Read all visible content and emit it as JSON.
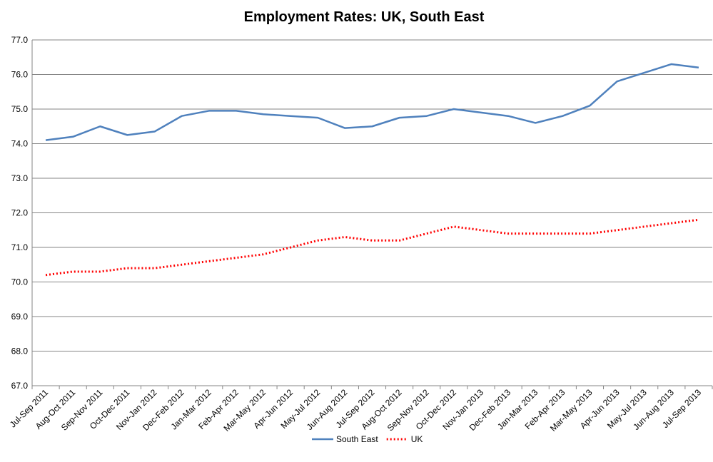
{
  "chart_data": {
    "type": "line",
    "title": "Employment Rates: UK, South East",
    "categories": [
      "Jul-Sep 2011",
      "Aug-Oct 2011",
      "Sep-Nov 2011",
      "Oct-Dec 2011",
      "Nov-Jan 2012",
      "Dec-Feb 2012",
      "Jan-Mar 2012",
      "Feb-Apr 2012",
      "Mar-May 2012",
      "Apr-Jun 2012",
      "May-Jul 2012",
      "Jun-Aug 2012",
      "Jul-Sep 2012",
      "Aug-Oct 2012",
      "Sep-Nov 2012",
      "Oct-Dec 2012",
      "Nov-Jan 2013",
      "Dec-Feb 2013",
      "Jan-Mar 2013",
      "Feb-Apr 2013",
      "Mar-May 2013",
      "Apr-Jun 2013",
      "May-Jul 2013",
      "Jun-Aug 2013",
      "Jul-Sep 2013"
    ],
    "series": [
      {
        "name": "South East",
        "color": "#4f81bd",
        "dash": false,
        "values": [
          74.1,
          74.2,
          74.5,
          74.25,
          74.35,
          74.8,
          74.95,
          74.95,
          74.85,
          74.8,
          74.75,
          74.45,
          74.5,
          74.75,
          74.8,
          75.0,
          74.9,
          74.8,
          74.6,
          74.8,
          75.1,
          75.8,
          76.05,
          76.3,
          76.2
        ]
      },
      {
        "name": "UK",
        "color": "#ff0000",
        "dash": true,
        "values": [
          70.2,
          70.3,
          70.3,
          70.4,
          70.4,
          70.5,
          70.6,
          70.7,
          70.8,
          71.0,
          71.2,
          71.3,
          71.2,
          71.2,
          71.4,
          71.6,
          71.5,
          71.4,
          71.4,
          71.4,
          71.4,
          71.5,
          71.6,
          71.7,
          71.8
        ]
      }
    ],
    "ylim": [
      67,
      77
    ],
    "yticks": [
      {
        "value": 67,
        "label": "67.0"
      },
      {
        "value": 68,
        "label": "68.0"
      },
      {
        "value": 69,
        "label": "69.0"
      },
      {
        "value": 70,
        "label": "70.0"
      },
      {
        "value": 71,
        "label": "71.0"
      },
      {
        "value": 72,
        "label": "72.0"
      },
      {
        "value": 73,
        "label": "73.0"
      },
      {
        "value": 74,
        "label": "74.0"
      },
      {
        "value": 75,
        "label": "75.0"
      },
      {
        "value": 76,
        "label": "76.0"
      },
      {
        "value": 77,
        "label": "77.0"
      }
    ],
    "grid": true,
    "legend": "bottom"
  }
}
